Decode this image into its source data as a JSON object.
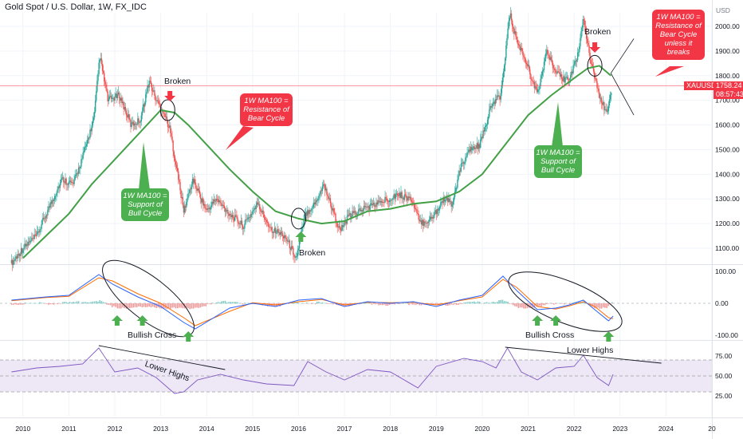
{
  "header": {
    "title": "Gold Spot / U.S. Dollar, 1W, FX_IDC"
  },
  "axis": {
    "currency": "USD",
    "price_ticks": [
      2000,
      1900,
      1800,
      1700,
      1600,
      1500,
      1400,
      1300,
      1200,
      1100
    ],
    "price_tick_labels": [
      "2000.00",
      "1900.00",
      "1800.00",
      "1700.00",
      "1600.00",
      "1500.00",
      "1400.00",
      "1300.00",
      "1200.00",
      "1100.00"
    ],
    "macd_tick_labels": [
      "100.00",
      "0.00",
      "-100.00"
    ],
    "rsi_tick_labels": [
      "75.00",
      "50.00",
      "25.00"
    ],
    "year_labels": [
      "2010",
      "2011",
      "2012",
      "2013",
      "2014",
      "2015",
      "2016",
      "2017",
      "2018",
      "2019",
      "2020",
      "2021",
      "2022",
      "2023",
      "2024",
      "20"
    ]
  },
  "current_price": {
    "symbol": "XAUUSD",
    "price": "1758.24",
    "countdown": "08:57:43",
    "value": 1758.24
  },
  "callouts": {
    "bear_resistance": [
      "1W MA100 =",
      "Resistance of",
      "Bear Cycle"
    ],
    "bull_support_left": [
      "1W MA100 =",
      "Support of",
      "Bull Cycle"
    ],
    "bull_support_right": [
      "1W MA100 =",
      "Support of",
      "Bull Cycle"
    ],
    "bear_resistance_top": [
      "1W MA100 =",
      "Resistance of",
      "Bear Cycle",
      "unless it breaks"
    ]
  },
  "annotations": {
    "broken_left": "Broken",
    "broken_mid": "Broken",
    "broken_right": "Broken",
    "bullish_cross_left": "Bullish Cross",
    "bullish_cross_right": "Bullish Cross",
    "lower_highs_left": "Lower Highs",
    "lower_highs_right": "Lower Highs"
  },
  "colors": {
    "ma100": "#43a047",
    "up": "#26a69a",
    "down": "#ef5350",
    "macd": "#2962ff",
    "signal": "#ff6d00",
    "rsi": "#7e57c2",
    "rsi_band": "#ede7f6",
    "callout_red": "#f23645",
    "callout_green": "#4caf50",
    "current_line": "#f23645"
  },
  "chart_data": {
    "type": "line",
    "series": [
      {
        "kind": "price",
        "x": [
          2009.75,
          2010.0,
          2010.3,
          2010.6,
          2010.85,
          2011.1,
          2011.35,
          2011.55,
          2011.67,
          2011.85,
          2012.1,
          2012.35,
          2012.55,
          2012.75,
          2012.9,
          2013.05,
          2013.2,
          2013.35,
          2013.5,
          2013.7,
          2014.0,
          2014.2,
          2014.5,
          2014.8,
          2015.1,
          2015.4,
          2015.7,
          2015.95,
          2016.15,
          2016.35,
          2016.55,
          2016.9,
          2017.1,
          2017.4,
          2017.7,
          2017.95,
          2018.15,
          2018.45,
          2018.65,
          2018.9,
          2019.15,
          2019.35,
          2019.55,
          2019.75,
          2019.95,
          2020.2,
          2020.4,
          2020.6,
          2020.75,
          2020.95,
          2021.2,
          2021.4,
          2021.6,
          2021.8,
          2021.95,
          2022.1,
          2022.2,
          2022.35,
          2022.55,
          2022.72,
          2022.82
        ],
        "y": [
          1040,
          1100,
          1150,
          1280,
          1380,
          1360,
          1500,
          1630,
          1880,
          1700,
          1720,
          1600,
          1620,
          1780,
          1700,
          1660,
          1580,
          1420,
          1250,
          1380,
          1250,
          1300,
          1240,
          1190,
          1280,
          1180,
          1150,
          1060,
          1240,
          1280,
          1360,
          1170,
          1230,
          1260,
          1280,
          1300,
          1320,
          1300,
          1200,
          1220,
          1300,
          1280,
          1440,
          1500,
          1520,
          1680,
          1720,
          2050,
          1940,
          1860,
          1720,
          1900,
          1810,
          1780,
          1810,
          1900,
          2040,
          1860,
          1720,
          1640,
          1758
        ]
      },
      {
        "kind": "ma100",
        "x": [
          2010.0,
          2010.5,
          2011.0,
          2011.5,
          2012.0,
          2012.5,
          2013.0,
          2013.3,
          2013.6,
          2014.0,
          2014.5,
          2015.0,
          2015.5,
          2016.0,
          2016.5,
          2017.0,
          2017.5,
          2018.0,
          2018.5,
          2019.0,
          2019.5,
          2020.0,
          2020.5,
          2021.0,
          2021.5,
          2022.0,
          2022.3,
          2022.55,
          2022.8
        ],
        "y": [
          1060,
          1150,
          1240,
          1360,
          1460,
          1560,
          1660,
          1650,
          1600,
          1520,
          1420,
          1330,
          1250,
          1220,
          1200,
          1210,
          1250,
          1260,
          1280,
          1290,
          1330,
          1400,
          1520,
          1640,
          1720,
          1790,
          1830,
          1840,
          1800
        ]
      }
    ],
    "ma100_broken_points": [
      {
        "x": 2013.15,
        "y": 1660
      },
      {
        "x": 2016.0,
        "y": 1220
      },
      {
        "x": 2022.45,
        "y": 1840
      }
    ],
    "projection": {
      "from": {
        "x": 2022.8,
        "y": 1810
      },
      "up_to": {
        "x": 2023.3,
        "y": 1950
      },
      "down_to": {
        "x": 2023.3,
        "y": 1640
      }
    },
    "macd": {
      "x": [
        2009.75,
        2010.5,
        2011.0,
        2011.65,
        2011.95,
        2012.5,
        2013.0,
        2013.5,
        2013.75,
        2014.5,
        2015.0,
        2015.5,
        2016.0,
        2016.5,
        2017.0,
        2017.5,
        2018.0,
        2018.5,
        2019.0,
        2019.5,
        2020.0,
        2020.45,
        2020.75,
        2021.2,
        2021.6,
        2021.9,
        2022.2,
        2022.45,
        2022.75,
        2022.85
      ],
      "macd": [
        10,
        20,
        25,
        90,
        60,
        20,
        -10,
        -60,
        -80,
        -15,
        0,
        -10,
        10,
        15,
        -10,
        5,
        0,
        5,
        -10,
        10,
        25,
        85,
        40,
        -20,
        -15,
        -5,
        10,
        -20,
        -55,
        -40
      ],
      "signal": [
        8,
        18,
        22,
        80,
        70,
        30,
        0,
        -45,
        -70,
        -25,
        2,
        -5,
        5,
        12,
        -5,
        3,
        2,
        3,
        -5,
        8,
        20,
        75,
        50,
        -10,
        -18,
        -8,
        5,
        -10,
        -45,
        -48
      ],
      "bullish_crosses": [
        2012.05,
        2012.6,
        2013.6,
        2021.2,
        2021.6,
        2022.75
      ]
    },
    "rsi": {
      "x": [
        2009.75,
        2010.3,
        2010.8,
        2011.3,
        2011.65,
        2012.0,
        2012.5,
        2012.9,
        2013.3,
        2013.5,
        2013.8,
        2014.3,
        2014.8,
        2015.3,
        2015.9,
        2016.2,
        2016.6,
        2017.0,
        2017.5,
        2018.0,
        2018.6,
        2019.0,
        2019.6,
        2020.0,
        2020.3,
        2020.55,
        2020.85,
        2021.2,
        2021.6,
        2022.0,
        2022.2,
        2022.5,
        2022.75,
        2022.85
      ],
      "y": [
        55,
        60,
        62,
        65,
        85,
        55,
        60,
        48,
        28,
        30,
        45,
        52,
        45,
        40,
        38,
        68,
        55,
        45,
        58,
        55,
        35,
        62,
        72,
        68,
        60,
        85,
        55,
        45,
        60,
        62,
        76,
        48,
        38,
        52
      ],
      "lower_highs_left": {
        "from": {
          "x": 2011.65,
          "y": 88
        },
        "to": {
          "x": 2014.4,
          "y": 58
        }
      },
      "lower_highs_right": {
        "from": {
          "x": 2020.5,
          "y": 86
        },
        "to": {
          "x": 2023.9,
          "y": 66
        }
      }
    },
    "ylim": [
      1040,
      2080
    ],
    "xlim": [
      2009.5,
      2025.0
    ],
    "grid": true
  }
}
